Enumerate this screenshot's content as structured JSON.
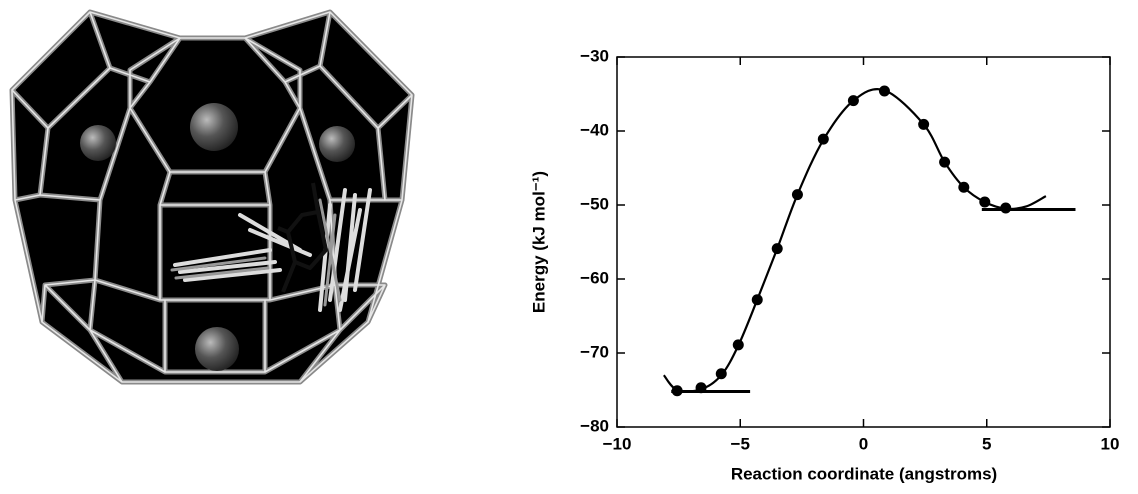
{
  "chart_data": {
    "type": "scatter",
    "xlabel": "Reaction coordinate (angstroms)",
    "ylabel": "Energy (kJ mol⁻¹)",
    "x": [
      -7.56,
      -6.59,
      -5.77,
      -5.08,
      -4.31,
      -3.5,
      -2.68,
      -1.63,
      -0.41,
      0.85,
      2.44,
      3.29,
      4.07,
      4.92,
      5.77
    ],
    "values": [
      -75.1,
      -74.7,
      -72.8,
      -68.9,
      -62.8,
      -55.9,
      -48.6,
      -41.1,
      -35.9,
      -34.6,
      -39.1,
      -44.2,
      -47.6,
      -49.6,
      -50.4
    ],
    "color": "#000000",
    "fit": {
      "x": [
        -8.1,
        -7.56,
        -6.59,
        -5.77,
        -5.08,
        -4.31,
        -3.5,
        -2.68,
        -1.63,
        -0.41,
        0.85,
        2.44,
        3.29,
        4.07,
        4.92,
        5.77,
        6.6,
        7.4
      ],
      "values": [
        -73.0,
        -75.0,
        -74.9,
        -73.0,
        -69.0,
        -62.8,
        -55.9,
        -48.6,
        -41.2,
        -35.9,
        -34.5,
        -39.1,
        -44.2,
        -47.6,
        -49.6,
        -50.5,
        -50.2,
        -48.8
      ]
    },
    "hlines": [
      {
        "y": -75.2,
        "x": [
          -7.8,
          -4.6
        ]
      },
      {
        "y": -50.6,
        "x": [
          4.8,
          8.6
        ]
      }
    ],
    "xlim": [
      -10,
      10
    ],
    "xticks": [
      {
        "value": -10,
        "label": "−10"
      },
      {
        "value": -5,
        "label": "−5"
      },
      0,
      5,
      10
    ],
    "ylim": [
      -80,
      -30
    ],
    "yticks": [
      {
        "value": -80,
        "label": "−80"
      },
      {
        "value": -70,
        "label": "−70"
      },
      {
        "value": -60,
        "label": "−60"
      },
      {
        "value": -50,
        "label": "−50"
      },
      {
        "value": -40,
        "label": "−40"
      },
      {
        "value": -30,
        "label": "−30"
      }
    ]
  }
}
